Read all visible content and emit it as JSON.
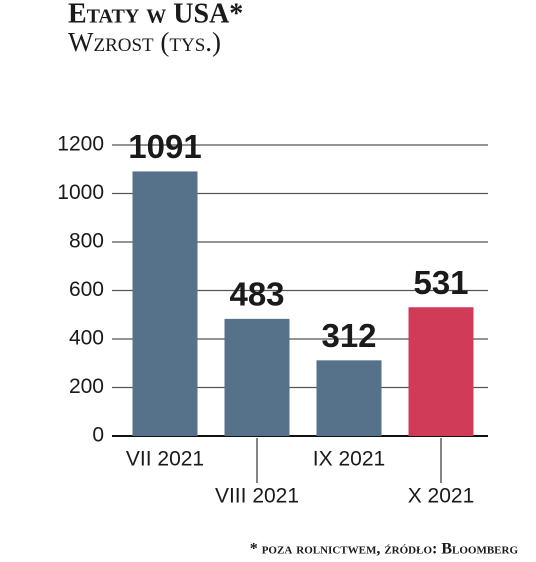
{
  "chart_data": {
    "type": "bar",
    "title": "Etaty w USA*",
    "subtitle": "Wzrost (tys.)",
    "footnote": "* poza rolnictwem, źródło: Bloomberg",
    "categories": [
      "VII 2021",
      "VIII 2021",
      "IX 2021",
      "X 2021"
    ],
    "values": [
      1091,
      483,
      312,
      531
    ],
    "colors": [
      "#56728a",
      "#56728a",
      "#56728a",
      "#d03b57"
    ],
    "ylim": [
      0,
      1200
    ],
    "yticks": [
      0,
      200,
      400,
      600,
      800,
      1000,
      1200
    ],
    "grid": true
  }
}
